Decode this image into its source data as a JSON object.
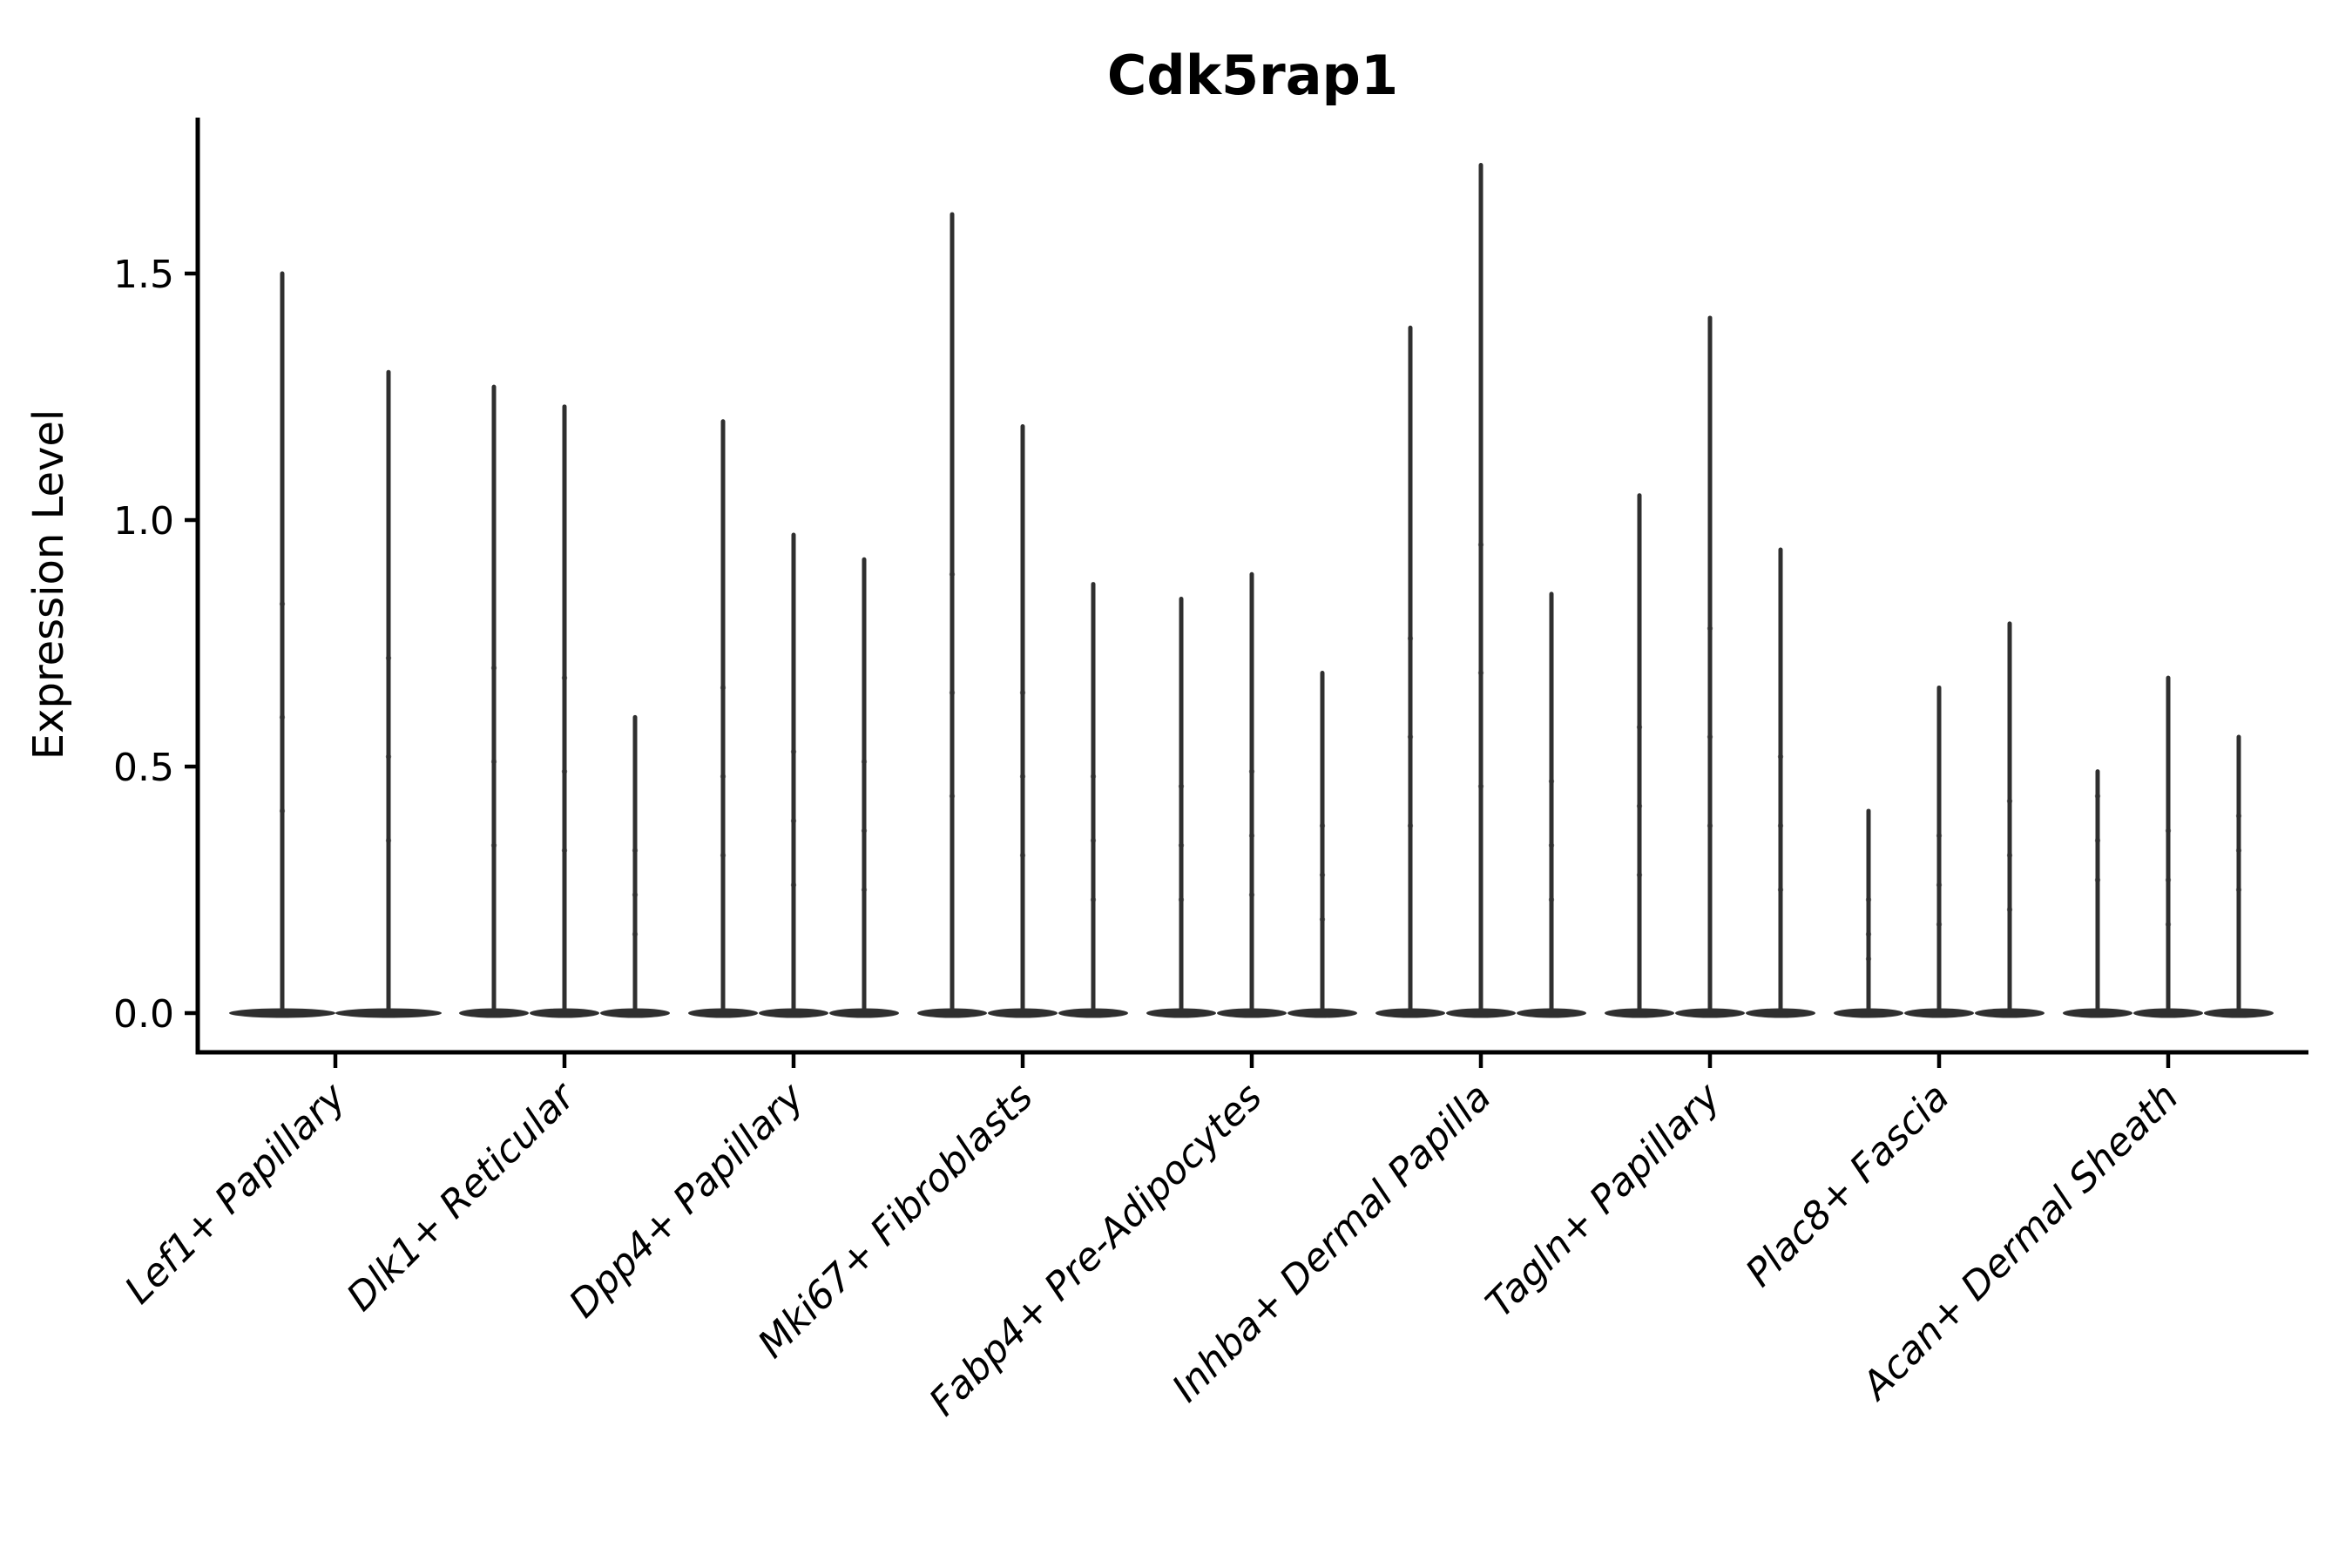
{
  "chart_data": {
    "type": "violin",
    "title": "Cdk5rap1",
    "xlabel": "",
    "ylabel": "Expression Level",
    "yticks": [
      0.0,
      0.5,
      1.0,
      1.5
    ],
    "ytick_labels": [
      "0.0",
      "0.5",
      "1.0",
      "1.5"
    ],
    "ylim": [
      -0.09,
      1.81
    ],
    "grid": "off",
    "legend": "none",
    "style_note": "needle-thin split violins: each category shows 2-3 narrow violins, mass concentrated at 0 (flat lens at baseline) with a thin spike up to the max expression",
    "categories": [
      "Lef1+ Papillary",
      "Dlk1+ Reticular",
      "Dpp4+ Papillary",
      "Mki67+ Fibroblasts",
      "Fabp4+ Pre-Adipocytes",
      "Inhba+ Dermal Papilla",
      "Tagln+ Papillary",
      "Plac8+ Fascia",
      "Acan+ Dermal Sheath"
    ],
    "groups": [
      {
        "category": "Lef1+ Papillary",
        "violins": [
          {
            "max": 1.5,
            "dots": [
              0.83,
              0.6,
              0.41
            ]
          },
          {
            "max": 1.3,
            "dots": [
              0.72,
              0.52,
              0.35
            ]
          }
        ]
      },
      {
        "category": "Dlk1+ Reticular",
        "violins": [
          {
            "max": 1.27,
            "dots": [
              0.7,
              0.51,
              0.34
            ]
          },
          {
            "max": 1.23,
            "dots": [
              0.68,
              0.49,
              0.33
            ]
          },
          {
            "max": 0.6,
            "dots": [
              0.33,
              0.24,
              0.16
            ]
          }
        ]
      },
      {
        "category": "Dpp4+ Papillary",
        "violins": [
          {
            "max": 1.2,
            "dots": [
              0.66,
              0.48,
              0.32
            ]
          },
          {
            "max": 0.97,
            "dots": [
              0.53,
              0.39,
              0.26
            ]
          },
          {
            "max": 0.92,
            "dots": [
              0.51,
              0.37,
              0.25
            ]
          }
        ]
      },
      {
        "category": "Mki67+ Fibroblasts",
        "violins": [
          {
            "max": 1.62,
            "dots": [
              0.89,
              0.65,
              0.44
            ]
          },
          {
            "max": 1.19,
            "dots": [
              0.65,
              0.48,
              0.32
            ]
          },
          {
            "max": 0.87,
            "dots": [
              0.48,
              0.35,
              0.23
            ]
          }
        ]
      },
      {
        "category": "Fabp4+ Pre-Adipocytes",
        "violins": [
          {
            "max": 0.84,
            "dots": [
              0.46,
              0.34,
              0.23
            ]
          },
          {
            "max": 0.89,
            "dots": [
              0.49,
              0.36,
              0.24
            ]
          },
          {
            "max": 0.69,
            "dots": [
              0.38,
              0.28,
              0.19
            ]
          }
        ]
      },
      {
        "category": "Inhba+ Dermal Papilla",
        "violins": [
          {
            "max": 1.39,
            "dots": [
              0.76,
              0.56,
              0.38
            ]
          },
          {
            "max": 1.72,
            "dots": [
              0.95,
              0.69,
              0.46
            ]
          },
          {
            "max": 0.85,
            "dots": [
              0.47,
              0.34,
              0.23
            ]
          }
        ]
      },
      {
        "category": "Tagln+ Papillary",
        "violins": [
          {
            "max": 1.05,
            "dots": [
              0.58,
              0.42,
              0.28
            ]
          },
          {
            "max": 1.41,
            "dots": [
              0.78,
              0.56,
              0.38
            ]
          },
          {
            "max": 0.94,
            "dots": [
              0.52,
              0.38,
              0.25
            ]
          }
        ]
      },
      {
        "category": "Plac8+ Fascia",
        "violins": [
          {
            "max": 0.41,
            "dots": [
              0.23,
              0.16,
              0.11
            ]
          },
          {
            "max": 0.66,
            "dots": [
              0.36,
              0.26,
              0.18
            ]
          },
          {
            "max": 0.79,
            "dots": [
              0.43,
              0.32,
              0.21
            ]
          }
        ]
      },
      {
        "category": "Acan+ Dermal Sheath",
        "violins": [
          {
            "max": 0.49,
            "dots": [
              0.44,
              0.35,
              0.27
            ]
          },
          {
            "max": 0.68,
            "dots": [
              0.37,
              0.27,
              0.18
            ]
          },
          {
            "max": 0.56,
            "dots": [
              0.4,
              0.33,
              0.25
            ]
          }
        ]
      }
    ],
    "colors": {
      "violin": "#2f2f2f",
      "axis": "#000000",
      "text": "#000000",
      "background": "#ffffff"
    }
  }
}
